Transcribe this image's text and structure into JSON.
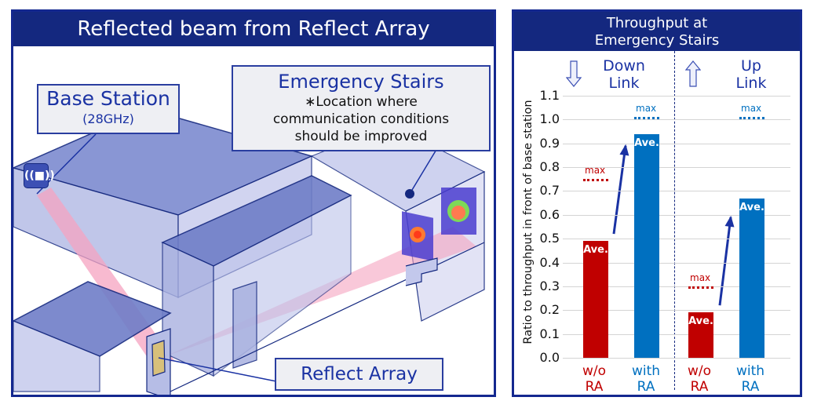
{
  "left_panel": {
    "title": "Reflected beam from Reflect Array",
    "callouts": {
      "base_station": {
        "title": "Base Station",
        "subtitle": "(28GHz)"
      },
      "emergency_stairs": {
        "title": "Emergency Stairs",
        "lines": [
          "∗Location where",
          "communication conditions",
          "should be improved"
        ]
      },
      "reflect_array": {
        "title": "Reflect Array"
      }
    },
    "icons": {
      "base_station": "radio-wave-antenna-icon"
    }
  },
  "right_panel": {
    "title_line1": "Throughput at",
    "title_line2": "Emergency Stairs",
    "downlink": {
      "line1": "Down",
      "line2": "Link",
      "icon": "down-arrow-icon"
    },
    "uplink": {
      "line1": "Up",
      "line2": "Link",
      "icon": "up-arrow-icon"
    },
    "ylabel": "Ratio to throughput in front of base station",
    "ticks": [
      "1.1",
      "1.0",
      "0.9",
      "0.8",
      "0.7",
      "0.6",
      "0.5",
      "0.4",
      "0.3",
      "0.2",
      "0.1",
      "0.0"
    ],
    "ave_label": "Ave.",
    "max_label": "max",
    "xlabels": [
      {
        "line1": "w/o",
        "line2": "RA"
      },
      {
        "line1": "with",
        "line2": "RA"
      },
      {
        "line1": "w/o",
        "line2": "RA"
      },
      {
        "line1": "with",
        "line2": "RA"
      }
    ]
  },
  "colors": {
    "navy": "#14287f",
    "red": "#c00000",
    "blue": "#0070c0",
    "beam": "#f5a3c0",
    "building": "#3c50b4"
  },
  "chart_data": {
    "type": "bar",
    "title": "Throughput at Emergency Stairs",
    "ylabel": "Ratio to throughput in front of base station",
    "ylim": [
      0.0,
      1.1
    ],
    "grid": true,
    "groups": [
      "Down Link",
      "Up Link"
    ],
    "categories": [
      "w/o RA",
      "with RA",
      "w/o RA",
      "with RA"
    ],
    "series": [
      {
        "name": "Ave.",
        "values": [
          0.49,
          0.94,
          0.19,
          0.67
        ],
        "colors": [
          "#c00000",
          "#0070c0",
          "#c00000",
          "#0070c0"
        ]
      },
      {
        "name": "max",
        "values": [
          0.75,
          1.01,
          0.3,
          1.01
        ],
        "style": "dotted"
      }
    ],
    "annotations": [
      "arrow from w/o RA to with RA (Down Link)",
      "arrow from w/o RA to with RA (Up Link)"
    ]
  }
}
